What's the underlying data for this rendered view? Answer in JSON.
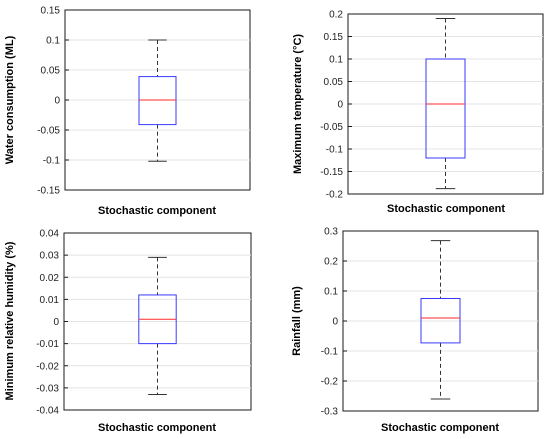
{
  "chart_data": [
    {
      "type": "box",
      "xlabel": "Stochastic component",
      "ylabel": "Water consumption (ML)",
      "ylim": [
        -0.15,
        0.15
      ],
      "yticks": [
        "0.15",
        "0.1",
        "0.05",
        "0",
        "-0.05",
        "-0.1",
        "-0.15"
      ],
      "grid": true,
      "box": {
        "whisker_high": 0.1,
        "q3": 0.039,
        "median": 0.0,
        "q1": -0.041,
        "whisker_low": -0.102
      }
    },
    {
      "type": "box",
      "xlabel": "Stochastic component",
      "ylabel": "Maximum temperature (°C)",
      "ylim": [
        -0.2,
        0.2
      ],
      "yticks": [
        "0.2",
        "0.15",
        "0.1",
        "0.05",
        "0",
        "-0.05",
        "-0.1",
        "-0.15",
        "-0.2"
      ],
      "grid": true,
      "box": {
        "whisker_high": 0.19,
        "q3": 0.1,
        "median": 0.0,
        "q1": -0.12,
        "whisker_low": -0.188
      }
    },
    {
      "type": "box",
      "xlabel": "Stochastic component",
      "ylabel": "Minimum relative humidity (%)",
      "ylim": [
        -0.04,
        0.04
      ],
      "yticks": [
        "0.04",
        "0.03",
        "0.02",
        "0.01",
        "0",
        "-0.01",
        "-0.02",
        "-0.03",
        "-0.04"
      ],
      "grid": true,
      "box": {
        "whisker_high": 0.029,
        "q3": 0.012,
        "median": 0.001,
        "q1": -0.01,
        "whisker_low": -0.033
      }
    },
    {
      "type": "box",
      "xlabel": "Stochastic component",
      "ylabel": "Rainfall (mm)",
      "ylim": [
        -0.3,
        0.3
      ],
      "yticks": [
        "0.3",
        "0.2",
        "0.1",
        "0",
        "-0.1",
        "-0.2",
        "-0.3"
      ],
      "grid": true,
      "box": {
        "whisker_high": 0.268,
        "q3": 0.075,
        "median": 0.01,
        "q1": -0.073,
        "whisker_low": -0.26
      }
    }
  ],
  "colors": {
    "box": "#3a3aff",
    "median": "#ff2a2a",
    "whisker": "#333333",
    "frame": "#1a1a1a",
    "grid": "#e4e4e4"
  }
}
